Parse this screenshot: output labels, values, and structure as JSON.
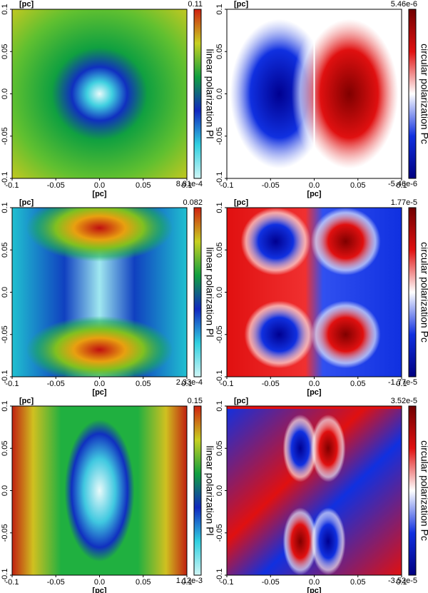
{
  "chart_data": [
    {
      "type": "heatmap",
      "xlabel": "[pc]",
      "ylabel": "[pc]",
      "xlim": [
        -0.1,
        0.1
      ],
      "ylim": [
        -0.1,
        0.1
      ],
      "xticks": [
        -0.1,
        -0.05,
        {
          "value": 0,
          "label": "0.0"
        },
        0.05,
        0.1
      ],
      "yticks": [
        -0.1,
        -0.05,
        {
          "value": 0,
          "label": "0.0"
        },
        0.05,
        0.1
      ],
      "colorbar_label": "linear polarization Pl",
      "clim": [
        {
          "value": 0.000881,
          "label": "8.81e-4"
        },
        0.11
      ],
      "colormap": [
        "#d0f6f6",
        "#30d0e0",
        "#1028c0",
        "#10a040",
        "#c8d020",
        "#d02010"
      ]
    },
    {
      "type": "heatmap",
      "xlabel": "[pc]",
      "ylabel": "[pc]",
      "xlim": [
        -0.1,
        0.1
      ],
      "ylim": [
        -0.1,
        0.1
      ],
      "xticks": [
        -0.1,
        -0.05,
        {
          "value": 0,
          "label": "0.0"
        },
        0.05,
        0.1
      ],
      "yticks": [
        -0.1,
        -0.05,
        {
          "value": 0,
          "label": "0.0"
        },
        0.05,
        0.1
      ],
      "colorbar_label": "circular polarization Pc",
      "clim": [
        {
          "value": -5.46e-06,
          "label": "-5.46e-6"
        },
        {
          "value": 5.46e-06,
          "label": "5.46e-6"
        }
      ],
      "colormap": [
        "#000080",
        "#1030e0",
        "#ffffff",
        "#e01010",
        "#700000"
      ]
    },
    {
      "type": "heatmap",
      "xlabel": "[pc]",
      "ylabel": "[pc]",
      "xlim": [
        -0.1,
        0.1
      ],
      "ylim": [
        -0.1,
        0.1
      ],
      "xticks": [
        -0.1,
        -0.05,
        {
          "value": 0,
          "label": "0.0"
        },
        0.05,
        0.1
      ],
      "yticks": [
        -0.1,
        -0.05,
        {
          "value": 0,
          "label": "0.0"
        },
        0.05,
        0.1
      ],
      "colorbar_label": "linear polarization Pl",
      "clim": [
        {
          "value": 0.000233,
          "label": "2.33e-4"
        },
        0.082
      ],
      "colormap": [
        "#d0f6f6",
        "#30d0e0",
        "#1028c0",
        "#10a040",
        "#c8d020",
        "#d02010"
      ]
    },
    {
      "type": "heatmap",
      "xlabel": "[pc]",
      "ylabel": "[pc]",
      "xlim": [
        -0.1,
        0.1
      ],
      "ylim": [
        -0.1,
        0.1
      ],
      "xticks": [
        -0.1,
        -0.05,
        {
          "value": 0,
          "label": "0.0"
        },
        0.05,
        0.1
      ],
      "yticks": [
        -0.1,
        -0.05,
        {
          "value": 0,
          "label": "0.0"
        },
        0.05,
        0.1
      ],
      "colorbar_label": "circular polarization Pc",
      "clim": [
        {
          "value": -1.77e-05,
          "label": "-1.77e-5"
        },
        {
          "value": 1.77e-05,
          "label": "1.77e-5"
        }
      ],
      "colormap": [
        "#000080",
        "#1030e0",
        "#ffffff",
        "#e01010",
        "#700000"
      ]
    },
    {
      "type": "heatmap",
      "xlabel": "[pc]",
      "ylabel": "[pc]",
      "xlim": [
        -0.1,
        0.1
      ],
      "ylim": [
        -0.1,
        0.1
      ],
      "xticks": [
        -0.1,
        -0.05,
        {
          "value": 0,
          "label": "0.0"
        },
        0.05,
        0.1
      ],
      "yticks": [
        -0.1,
        -0.05,
        {
          "value": 0,
          "label": "0.0"
        },
        0.05,
        0.1
      ],
      "colorbar_label": "linear polarization Pl",
      "clim": [
        {
          "value": 0.00112,
          "label": "1.12e-3"
        },
        0.15
      ],
      "colormap": [
        "#d0f6f6",
        "#30d0e0",
        "#1028c0",
        "#10a040",
        "#c8d020",
        "#d02010"
      ]
    },
    {
      "type": "heatmap",
      "xlabel": "[pc]",
      "ylabel": "[pc]",
      "xlim": [
        -0.1,
        0.1
      ],
      "ylim": [
        -0.1,
        0.1
      ],
      "xticks": [
        -0.1,
        -0.05,
        {
          "value": 0,
          "label": "0.0"
        },
        0.05,
        0.1
      ],
      "yticks": [
        -0.1,
        -0.05,
        {
          "value": 0,
          "label": "0.0"
        },
        0.05,
        0.1
      ],
      "colorbar_label": "circular polarization Pc",
      "clim": [
        {
          "value": -3.52e-05,
          "label": "-3.52e-5"
        },
        {
          "value": 3.52e-05,
          "label": "3.52e-5"
        }
      ],
      "colormap": [
        "#000080",
        "#1030e0",
        "#ffffff",
        "#e01010",
        "#700000"
      ]
    }
  ]
}
